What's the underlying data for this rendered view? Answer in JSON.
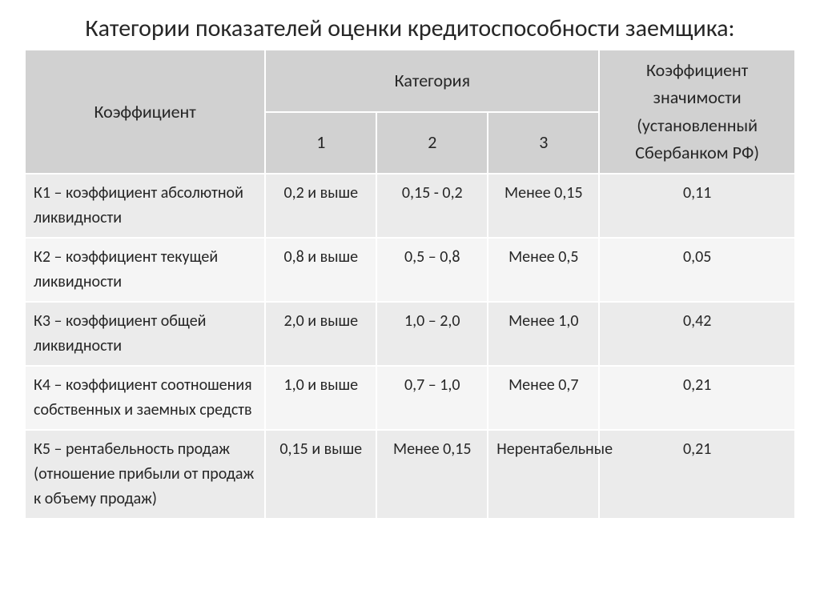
{
  "title": "Категории показателей оценки кредитоспособности заемщика:",
  "title_fontsize": 30,
  "colors": {
    "header_bg": "#d1d1d1",
    "row_odd_bg": "#ebebeb",
    "row_even_bg": "#f5f5f5",
    "border": "#ffffff",
    "text": "#262626",
    "background": "#ffffff"
  },
  "fontsize": {
    "header": 22,
    "body": 20,
    "line_height": 1.55
  },
  "table": {
    "columns": {
      "coef": "Коэффициент",
      "category": "Категория",
      "cat1": "1",
      "cat2": "2",
      "cat3": "3",
      "significance": "Коэффициент значимости (установленный Сбербанком РФ)"
    },
    "rows": [
      {
        "coef": "К1 – коэффициент абсолютной ликвидности",
        "cat1": "0,2 и выше",
        "cat2": "0,15 - 0,2",
        "cat3": "Менее 0,15",
        "sig": "0,11"
      },
      {
        "coef": "К2 – коэффициент текущей ликвидности",
        "cat1": "0,8 и выше",
        "cat2": "0,5 – 0,8",
        "cat3": "Менее 0,5",
        "sig": "0,05"
      },
      {
        "coef": "К3 – коэффициент общей ликвидности",
        "cat1": "2,0 и выше",
        "cat2": "1,0 – 2,0",
        "cat3": "Менее 1,0",
        "sig": "0,42"
      },
      {
        "coef": "К4 – коэффициент соотношения собственных и заемных средств",
        "cat1": "1,0 и выше",
        "cat2": "0,7 – 1,0",
        "cat3": "Менее 0,7",
        "sig": "0,21"
      },
      {
        "coef": "К5 – рентабельность продаж (отношение прибыли  от продаж к объему продаж)",
        "cat1": "0,15 и выше",
        "cat2": "Менее 0,15",
        "cat3": "Нерентабельные",
        "sig": "0,21"
      }
    ]
  }
}
